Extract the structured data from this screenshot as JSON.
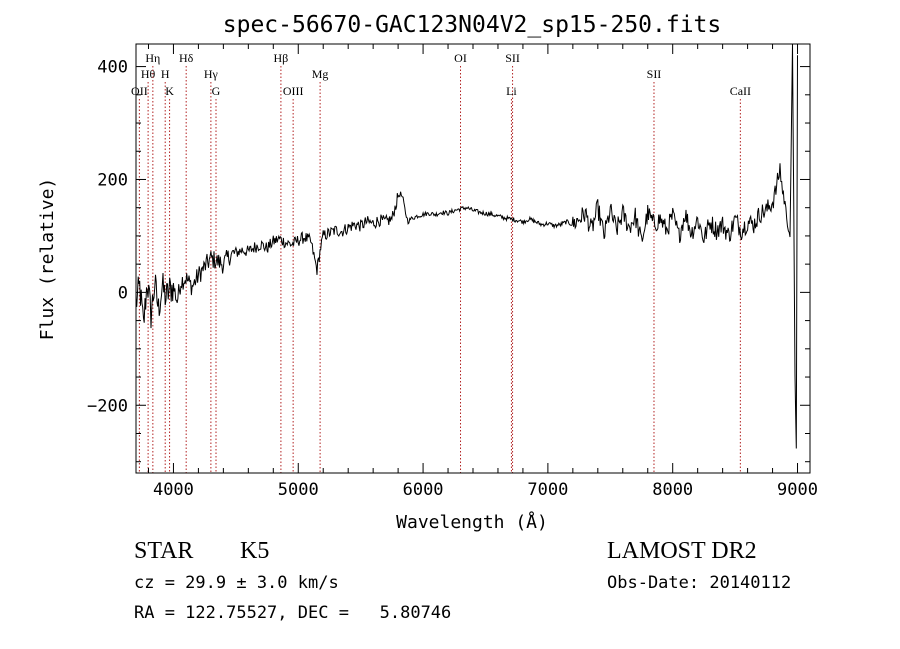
{
  "chart_data": {
    "type": "line",
    "title": "spec-56670-GAC123N04V2_sp15-250.fits",
    "xlabel": "Wavelength (Å)",
    "ylabel": "Flux (relative)",
    "xlim": [
      3700,
      9100
    ],
    "ylim": [
      -320,
      440
    ],
    "xticks": [
      4000,
      5000,
      6000,
      7000,
      8000,
      9000
    ],
    "yticks": [
      -200,
      0,
      200,
      400
    ],
    "grid": false,
    "series": [
      {
        "color": "#000000",
        "x": [
          3700,
          3730,
          3760,
          3790,
          3820,
          3850,
          3880,
          3910,
          3940,
          3970,
          4000,
          4030,
          4060,
          4100,
          4150,
          4200,
          4250,
          4300,
          4350,
          4400,
          4450,
          4500,
          4550,
          4600,
          4650,
          4700,
          4750,
          4800,
          4850,
          4900,
          4950,
          5000,
          5050,
          5100,
          5150,
          5180,
          5200,
          5250,
          5300,
          5350,
          5400,
          5450,
          5500,
          5550,
          5600,
          5650,
          5700,
          5750,
          5800,
          5820,
          5840,
          5860,
          5880,
          5900,
          5950,
          6000,
          6050,
          6100,
          6150,
          6200,
          6250,
          6300,
          6350,
          6400,
          6450,
          6500,
          6550,
          6600,
          6650,
          6700,
          6750,
          6800,
          6850,
          6900,
          6950,
          7000,
          7050,
          7100,
          7150,
          7200,
          7250,
          7300,
          7350,
          7400,
          7450,
          7500,
          7550,
          7600,
          7650,
          7700,
          7750,
          7800,
          7850,
          7900,
          7950,
          8000,
          8050,
          8100,
          8150,
          8200,
          8250,
          8300,
          8350,
          8400,
          8450,
          8500,
          8550,
          8600,
          8650,
          8700,
          8750,
          8800,
          8820,
          8840,
          8860,
          8880,
          8900,
          8920,
          8940,
          8960,
          8970,
          8980,
          8990,
          9000
        ],
        "y": [
          -20,
          10,
          -60,
          20,
          -40,
          15,
          -30,
          10,
          -10,
          5,
          10,
          -15,
          20,
          25,
          10,
          30,
          45,
          60,
          55,
          50,
          65,
          70,
          75,
          72,
          80,
          85,
          78,
          90,
          95,
          88,
          85,
          92,
          98,
          90,
          40,
          80,
          100,
          105,
          110,
          108,
          115,
          120,
          118,
          125,
          122,
          128,
          125,
          130,
          170,
          175,
          165,
          140,
          125,
          130,
          135,
          138,
          140,
          138,
          142,
          140,
          145,
          148,
          150,
          145,
          142,
          140,
          138,
          135,
          132,
          130,
          128,
          125,
          130,
          125,
          120,
          122,
          118,
          120,
          125,
          120,
          130,
          140,
          110,
          150,
          100,
          145,
          110,
          140,
          115,
          135,
          90,
          140,
          120,
          130,
          110,
          135,
          100,
          140,
          105,
          130,
          95,
          125,
          110,
          120,
          100,
          130,
          110,
          125,
          120,
          140,
          145,
          160,
          175,
          195,
          220,
          180,
          160,
          120,
          100,
          440,
          150,
          -150,
          -280,
          420
        ]
      }
    ],
    "lines": [
      {
        "label": "OII",
        "x": 3727,
        "row": 3
      },
      {
        "label": "Hθ",
        "x": 3797,
        "row": 2
      },
      {
        "label": "Hη",
        "x": 3835,
        "row": 1
      },
      {
        "label": "H",
        "x": 3934,
        "row": 2
      },
      {
        "label": "K",
        "x": 3969,
        "row": 3
      },
      {
        "label": "Hδ",
        "x": 4102,
        "row": 1
      },
      {
        "label": "Hγ",
        "x": 4300,
        "row": 2
      },
      {
        "label": "G",
        "x": 4341,
        "row": 3
      },
      {
        "label": "Hβ",
        "x": 4861,
        "row": 1
      },
      {
        "label": "OIII",
        "x": 4959,
        "row": 3
      },
      {
        "label": "Mg",
        "x": 5175,
        "row": 2
      },
      {
        "label": "OI",
        "x": 6300,
        "row": 1
      },
      {
        "label": "SII",
        "x": 6717,
        "row": 1
      },
      {
        "label": "Li",
        "x": 6708,
        "row": 3
      },
      {
        "label": "SII",
        "x": 7850,
        "row": 2
      },
      {
        "label": "CaII",
        "x": 8542,
        "row": 3
      }
    ]
  },
  "info": {
    "class": "STAR",
    "subclass": "K5",
    "survey": "LAMOST DR2",
    "cz": "cz = 29.9 ± 3.0 km/s",
    "obs_date": "Obs-Date: 20140112",
    "radec": "RA = 122.75527, DEC =   5.80746"
  }
}
